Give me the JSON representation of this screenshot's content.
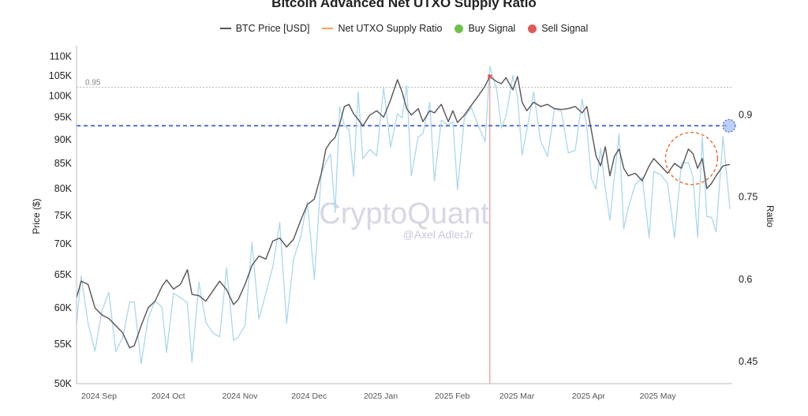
{
  "chart_data": {
    "type": "line",
    "title": "Bitcoin Advanced Net UTXO Supply Ratio",
    "ylabel": "Price ($)",
    "y2label": "Ratio",
    "watermark": "CryptoQuant",
    "watermark_author": "@Axel AdlerJr",
    "legend": {
      "placement": "top-center",
      "items": [
        {
          "label": "BTC Price [USD]",
          "color": "#555555",
          "marker": "line"
        },
        {
          "label": "Net UTXO Supply Ratio",
          "color": "#f5a05a",
          "marker": "line"
        },
        {
          "label": "Buy Signal",
          "color": "#6cc24a",
          "marker": "dot"
        },
        {
          "label": "Sell Signal",
          "color": "#e05a5a",
          "marker": "dot"
        }
      ]
    },
    "y_ticks": [
      "110K",
      "105K",
      "100K",
      "95K",
      "90K",
      "85K",
      "80K",
      "75K",
      "70K",
      "65K",
      "60K",
      "55K",
      "50K"
    ],
    "y2_ticks": [
      "0.9",
      "0.75",
      "0.6",
      "0.45"
    ],
    "x_ticks": [
      "2024 Sep",
      "2024 Oct",
      "2024 Nov",
      "2024 Dec",
      "2025 Jan",
      "2025 Feb",
      "2025 Mar",
      "2025 Apr",
      "2025 May"
    ],
    "ylim": [
      50000,
      112000
    ],
    "y_scale": "log",
    "y2lim": [
      0.41,
      1.02
    ],
    "threshold": {
      "label": "0.95",
      "value": 0.95
    },
    "support_line_ratio": 0.88,
    "x_start": "2024-08-25",
    "x_end": "2025-06-05",
    "grid": false,
    "colors": {
      "price": "#555555",
      "ratio_normal": "#a9d8ee",
      "ratio_high": "#f5a05a",
      "sell": "#e05a5a",
      "support": "#3050d0",
      "circle": "#e8743b"
    },
    "series": [
      {
        "name": "BTC Price [USD]",
        "points": [
          [
            "2024-08-25",
            61500
          ],
          [
            "2024-08-27",
            64000
          ],
          [
            "2024-08-30",
            63500
          ],
          [
            "2024-09-02",
            60000
          ],
          [
            "2024-09-05",
            59000
          ],
          [
            "2024-09-08",
            58500
          ],
          [
            "2024-09-11",
            57500
          ],
          [
            "2024-09-14",
            56500
          ],
          [
            "2024-09-17",
            54500
          ],
          [
            "2024-09-19",
            54800
          ],
          [
            "2024-09-22",
            57500
          ],
          [
            "2024-09-25",
            60000
          ],
          [
            "2024-09-28",
            61000
          ],
          [
            "2024-10-01",
            63200
          ],
          [
            "2024-10-03",
            64200
          ],
          [
            "2024-10-06",
            62800
          ],
          [
            "2024-10-09",
            63500
          ],
          [
            "2024-10-12",
            65800
          ],
          [
            "2024-10-14",
            62000
          ],
          [
            "2024-10-17",
            61800
          ],
          [
            "2024-10-20",
            61000
          ],
          [
            "2024-10-23",
            62500
          ],
          [
            "2024-10-26",
            64000
          ],
          [
            "2024-10-29",
            62700
          ],
          [
            "2024-11-01",
            60500
          ],
          [
            "2024-11-03",
            61200
          ],
          [
            "2024-11-06",
            63500
          ],
          [
            "2024-11-09",
            66500
          ],
          [
            "2024-11-12",
            68000
          ],
          [
            "2024-11-15",
            67500
          ],
          [
            "2024-11-18",
            70500
          ],
          [
            "2024-11-21",
            71000
          ],
          [
            "2024-11-24",
            69500
          ],
          [
            "2024-11-27",
            70800
          ],
          [
            "2024-11-30",
            74000
          ],
          [
            "2024-12-03",
            77000
          ],
          [
            "2024-12-06",
            78000
          ],
          [
            "2024-12-09",
            83000
          ],
          [
            "2024-12-11",
            88000
          ],
          [
            "2024-12-13",
            89500
          ],
          [
            "2024-12-15",
            90500
          ],
          [
            "2024-12-17",
            93500
          ],
          [
            "2024-12-19",
            97500
          ],
          [
            "2024-12-21",
            98000
          ],
          [
            "2024-12-23",
            95800
          ],
          [
            "2024-12-25",
            94500
          ],
          [
            "2024-12-27",
            93000
          ],
          [
            "2024-12-30",
            95500
          ],
          [
            "2025-01-02",
            96500
          ],
          [
            "2025-01-05",
            95000
          ],
          [
            "2025-01-08",
            99000
          ],
          [
            "2025-01-11",
            104000
          ],
          [
            "2025-01-13",
            101000
          ],
          [
            "2025-01-15",
            97000
          ],
          [
            "2025-01-17",
            95500
          ],
          [
            "2025-01-20",
            97000
          ],
          [
            "2025-01-22",
            94000
          ],
          [
            "2025-01-25",
            96500
          ],
          [
            "2025-01-27",
            96000
          ],
          [
            "2025-01-30",
            98000
          ],
          [
            "2025-02-02",
            94000
          ],
          [
            "2025-02-04",
            96500
          ],
          [
            "2025-02-06",
            93800
          ],
          [
            "2025-02-09",
            95500
          ],
          [
            "2025-02-12",
            97800
          ],
          [
            "2025-02-15",
            100000
          ],
          [
            "2025-02-18",
            102500
          ],
          [
            "2025-02-20",
            104800
          ],
          [
            "2025-02-23",
            103500
          ],
          [
            "2025-02-25",
            103000
          ],
          [
            "2025-02-27",
            104500
          ],
          [
            "2025-03-02",
            101500
          ],
          [
            "2025-03-04",
            104800
          ],
          [
            "2025-03-06",
            98500
          ],
          [
            "2025-03-08",
            96500
          ],
          [
            "2025-03-11",
            98500
          ],
          [
            "2025-03-14",
            97500
          ],
          [
            "2025-03-17",
            98000
          ],
          [
            "2025-03-20",
            97000
          ],
          [
            "2025-03-23",
            96800
          ],
          [
            "2025-03-26",
            97000
          ],
          [
            "2025-03-29",
            97500
          ],
          [
            "2025-04-01",
            96000
          ],
          [
            "2025-04-03",
            97500
          ],
          [
            "2025-04-05",
            92000
          ],
          [
            "2025-04-07",
            86500
          ],
          [
            "2025-04-09",
            84500
          ],
          [
            "2025-04-11",
            88500
          ],
          [
            "2025-04-13",
            82500
          ],
          [
            "2025-04-15",
            86500
          ],
          [
            "2025-04-17",
            88000
          ],
          [
            "2025-04-19",
            84000
          ],
          [
            "2025-04-21",
            82500
          ],
          [
            "2025-04-24",
            83000
          ],
          [
            "2025-04-27",
            81500
          ],
          [
            "2025-04-30",
            84500
          ],
          [
            "2025-05-02",
            86000
          ],
          [
            "2025-05-05",
            84500
          ],
          [
            "2025-05-08",
            83000
          ],
          [
            "2025-05-11",
            85000
          ],
          [
            "2025-05-14",
            84000
          ],
          [
            "2025-05-17",
            88000
          ],
          [
            "2025-05-19",
            87000
          ],
          [
            "2025-05-21",
            84000
          ],
          [
            "2025-05-23",
            86000
          ],
          [
            "2025-05-25",
            80000
          ],
          [
            "2025-05-27",
            81000
          ],
          [
            "2025-05-29",
            82500
          ],
          [
            "2025-06-01",
            84500
          ],
          [
            "2025-06-04",
            84800
          ]
        ]
      }
    ]
  }
}
